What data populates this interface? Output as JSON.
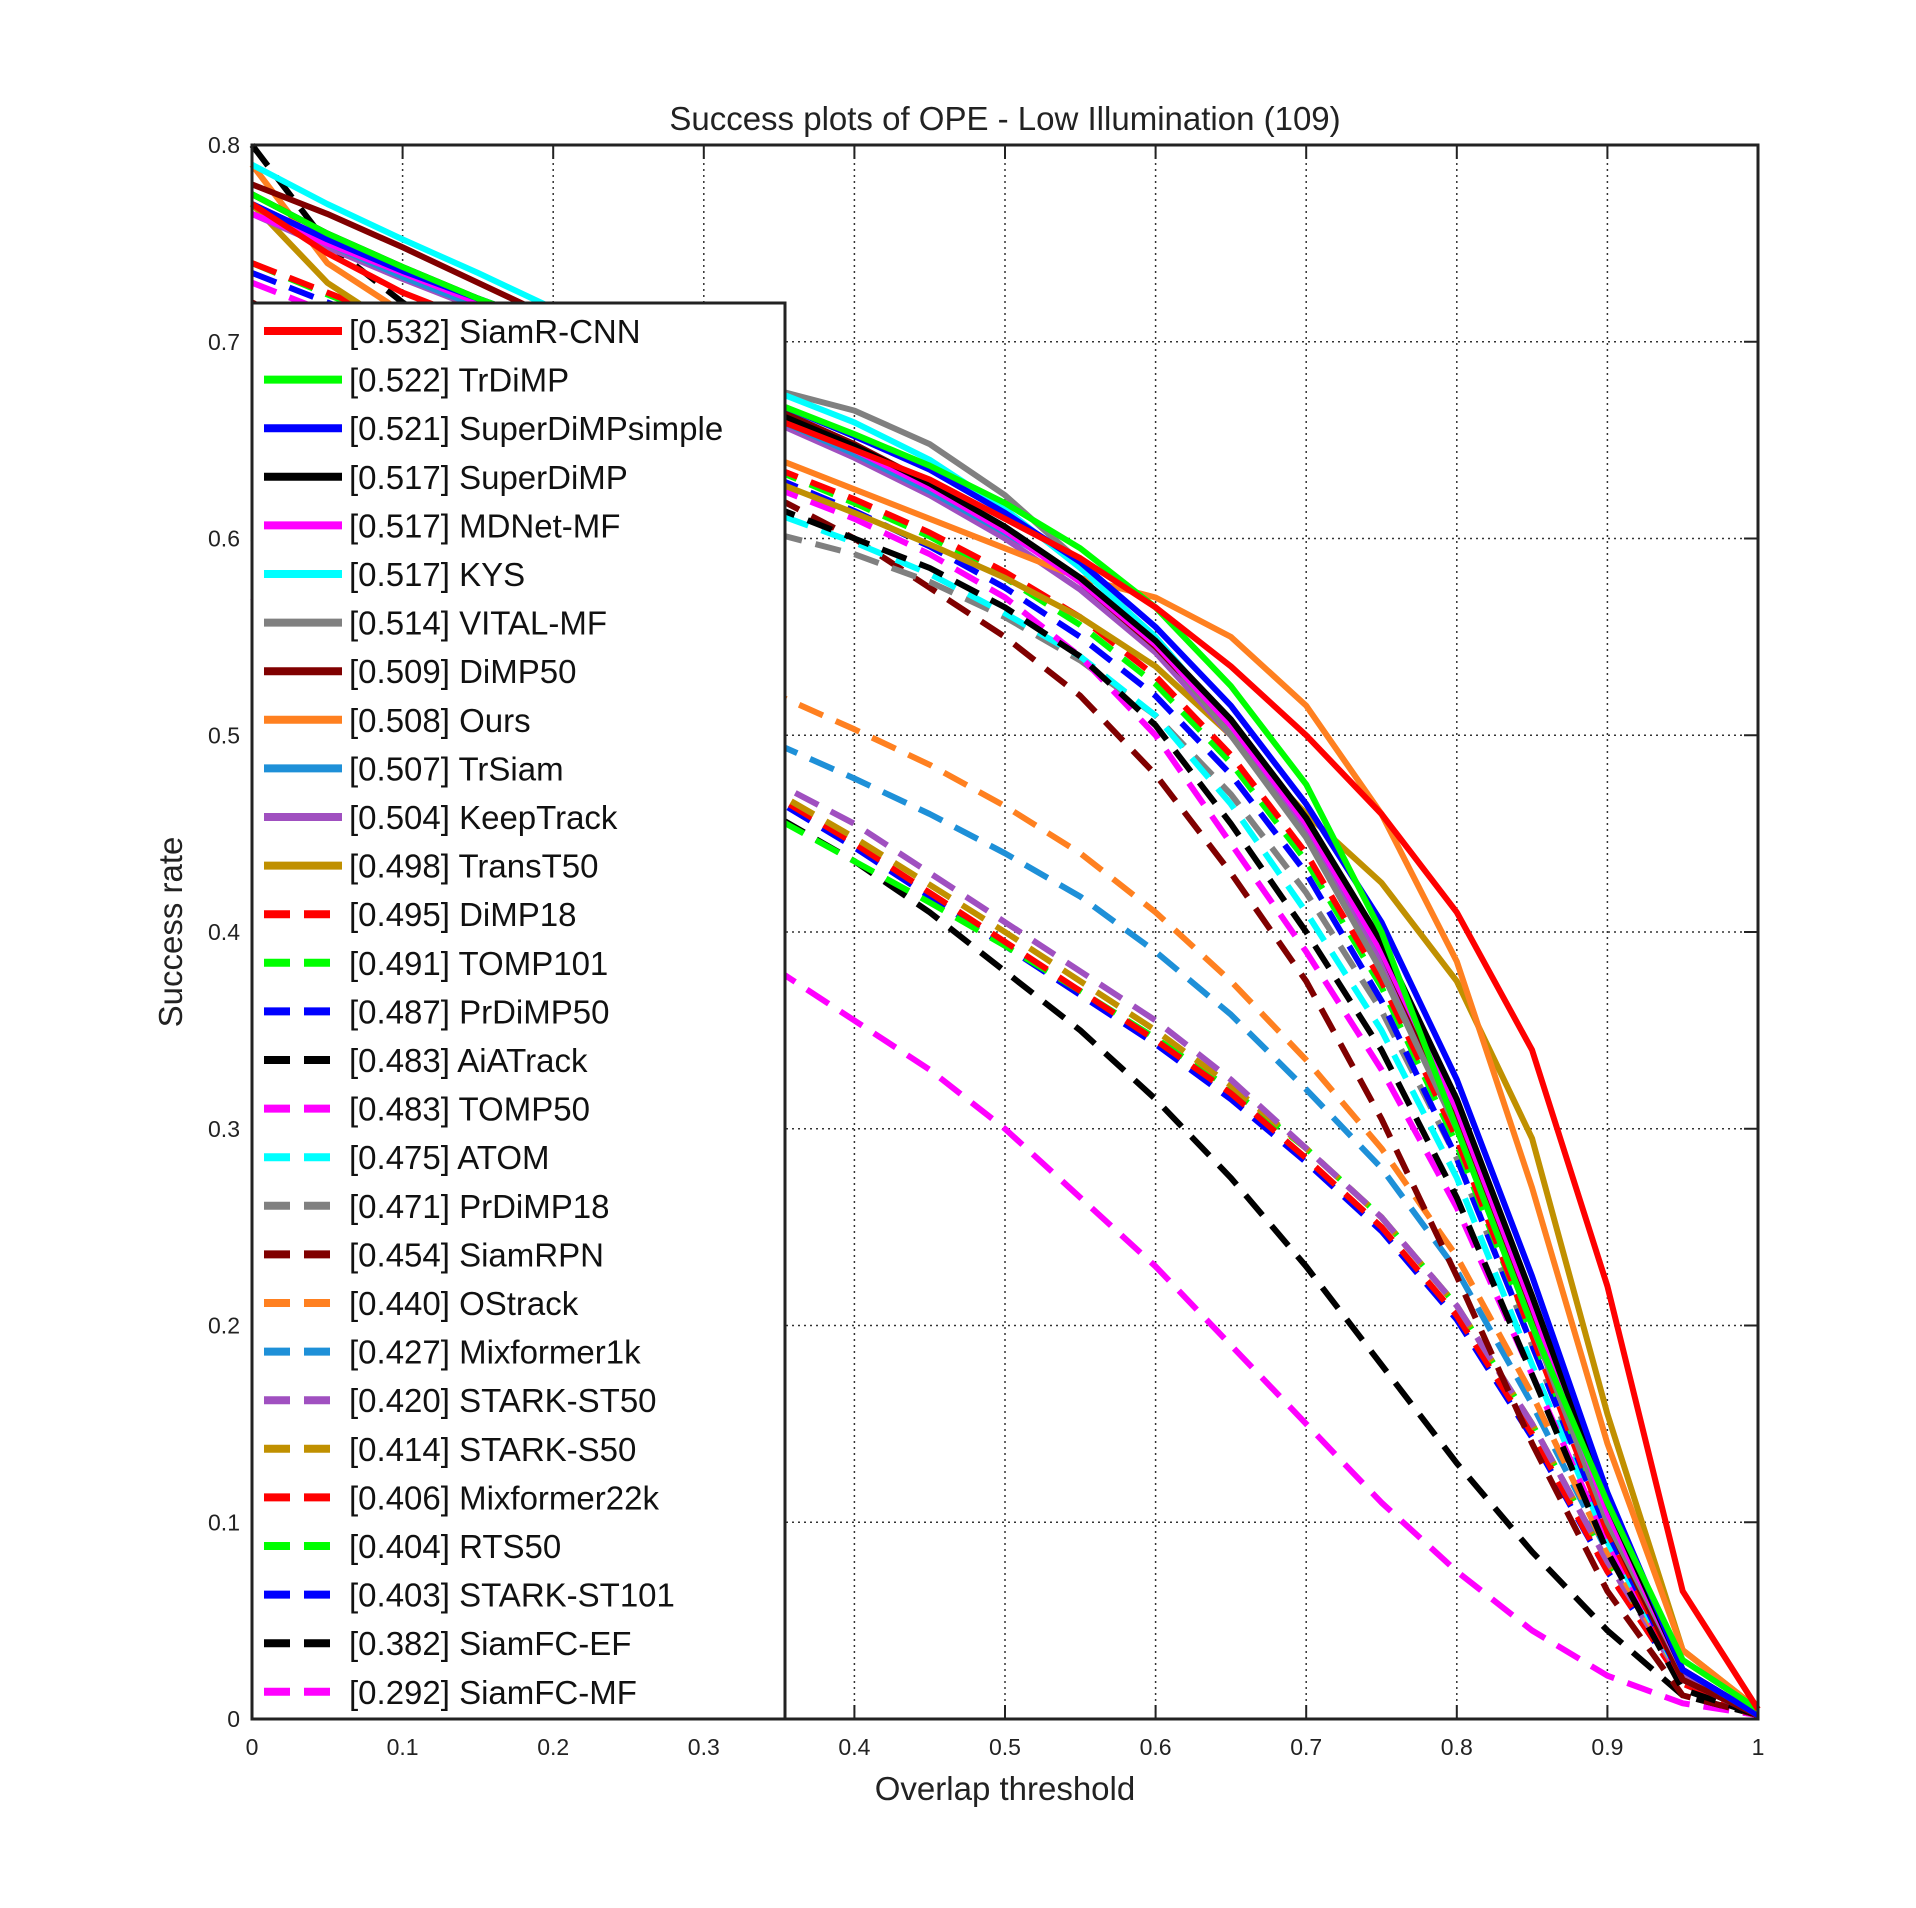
{
  "chart_data": {
    "type": "line",
    "title": "Success plots of OPE - Low Illumination (109)",
    "xlabel": "Overlap threshold",
    "ylabel": "Success rate",
    "xlim": [
      0,
      1
    ],
    "ylim": [
      0,
      0.8
    ],
    "xticks": [
      0,
      0.1,
      0.2,
      0.3,
      0.4,
      0.5,
      0.6,
      0.7,
      0.8,
      0.9,
      1
    ],
    "xtick_labels": [
      "0",
      "0.1",
      "0.2",
      "0.3",
      "0.4",
      "0.5",
      "0.6",
      "0.7",
      "0.8",
      "0.9",
      "1"
    ],
    "yticks": [
      0,
      0.1,
      0.2,
      0.3,
      0.4,
      0.5,
      0.6,
      0.7,
      0.8
    ],
    "ytick_labels": [
      "0",
      "0.1",
      "0.2",
      "0.3",
      "0.4",
      "0.5",
      "0.6",
      "0.7",
      "0.8"
    ],
    "grid": true,
    "grid_style": "dotted",
    "legend_position": "upper-left (inside axes)",
    "x": [
      0,
      0.05,
      0.1,
      0.15,
      0.2,
      0.25,
      0.3,
      0.35,
      0.4,
      0.45,
      0.5,
      0.55,
      0.6,
      0.65,
      0.7,
      0.75,
      0.8,
      0.85,
      0.9,
      0.95,
      1
    ],
    "series": [
      {
        "name": "[0.532] SiamR-CNN",
        "color": "#ff0000",
        "dashed": false,
        "values": [
          0.77,
          0.745,
          0.725,
          0.71,
          0.7,
          0.69,
          0.675,
          0.66,
          0.645,
          0.63,
          0.61,
          0.59,
          0.565,
          0.535,
          0.5,
          0.46,
          0.41,
          0.34,
          0.22,
          0.065,
          0.005
        ]
      },
      {
        "name": "[0.522] TrDiMP",
        "color": "#00ff00",
        "dashed": false,
        "values": [
          0.775,
          0.755,
          0.738,
          0.722,
          0.708,
          0.695,
          0.682,
          0.668,
          0.653,
          0.637,
          0.618,
          0.595,
          0.565,
          0.525,
          0.475,
          0.4,
          0.3,
          0.2,
          0.11,
          0.03,
          0.005
        ]
      },
      {
        "name": "[0.521] SuperDiMPsimple",
        "color": "#0000ff",
        "dashed": false,
        "values": [
          0.77,
          0.752,
          0.736,
          0.722,
          0.708,
          0.695,
          0.682,
          0.668,
          0.652,
          0.635,
          0.613,
          0.588,
          0.555,
          0.515,
          0.465,
          0.405,
          0.325,
          0.225,
          0.115,
          0.025,
          0.002
        ]
      },
      {
        "name": "[0.517] SuperDiMP",
        "color": "#000000",
        "dashed": false,
        "values": [
          0.775,
          0.755,
          0.738,
          0.722,
          0.707,
          0.693,
          0.678,
          0.663,
          0.647,
          0.628,
          0.606,
          0.58,
          0.548,
          0.508,
          0.458,
          0.395,
          0.315,
          0.215,
          0.11,
          0.025,
          0.002
        ]
      },
      {
        "name": "[0.517] MDNet-MF",
        "color": "#ff00ff",
        "dashed": false,
        "values": [
          0.765,
          0.75,
          0.735,
          0.72,
          0.706,
          0.692,
          0.677,
          0.662,
          0.645,
          0.626,
          0.604,
          0.578,
          0.546,
          0.505,
          0.455,
          0.39,
          0.31,
          0.21,
          0.105,
          0.025,
          0.002
        ]
      },
      {
        "name": "[0.517] KYS",
        "color": "#00ffff",
        "dashed": false,
        "values": [
          0.79,
          0.77,
          0.752,
          0.735,
          0.717,
          0.7,
          0.686,
          0.674,
          0.659,
          0.64,
          0.615,
          0.585,
          0.55,
          0.505,
          0.455,
          0.39,
          0.31,
          0.21,
          0.105,
          0.025,
          0.002
        ]
      },
      {
        "name": "[0.514] VITAL-MF",
        "color": "#808080",
        "dashed": false,
        "values": [
          0.77,
          0.752,
          0.737,
          0.722,
          0.708,
          0.695,
          0.685,
          0.675,
          0.665,
          0.648,
          0.622,
          0.588,
          0.548,
          0.5,
          0.448,
          0.38,
          0.3,
          0.2,
          0.1,
          0.025,
          0.002
        ]
      },
      {
        "name": "[0.509] DiMP50",
        "color": "#800000",
        "dashed": false,
        "values": [
          0.78,
          0.765,
          0.748,
          0.73,
          0.712,
          0.696,
          0.681,
          0.665,
          0.648,
          0.628,
          0.605,
          0.578,
          0.545,
          0.505,
          0.455,
          0.39,
          0.305,
          0.205,
          0.1,
          0.02,
          0.002
        ]
      },
      {
        "name": "[0.508] Ours",
        "color": "#ff8020",
        "dashed": false,
        "values": [
          0.79,
          0.74,
          0.715,
          0.7,
          0.685,
          0.67,
          0.655,
          0.64,
          0.625,
          0.61,
          0.595,
          0.58,
          0.57,
          0.55,
          0.515,
          0.46,
          0.385,
          0.27,
          0.14,
          0.035,
          0.005
        ]
      },
      {
        "name": "[0.507] TrSiam",
        "color": "#1e90d8",
        "dashed": false,
        "values": [
          0.77,
          0.75,
          0.733,
          0.718,
          0.703,
          0.689,
          0.675,
          0.66,
          0.643,
          0.624,
          0.603,
          0.58,
          0.548,
          0.505,
          0.455,
          0.39,
          0.31,
          0.21,
          0.105,
          0.025,
          0.002
        ]
      },
      {
        "name": "[0.504] KeepTrack",
        "color": "#a050c0",
        "dashed": false,
        "values": [
          0.765,
          0.748,
          0.732,
          0.717,
          0.702,
          0.688,
          0.673,
          0.658,
          0.641,
          0.622,
          0.6,
          0.574,
          0.542,
          0.5,
          0.45,
          0.385,
          0.305,
          0.205,
          0.1,
          0.022,
          0.002
        ]
      },
      {
        "name": "[0.498] TransT50",
        "color": "#c09000",
        "dashed": false,
        "values": [
          0.77,
          0.73,
          0.705,
          0.688,
          0.672,
          0.657,
          0.642,
          0.628,
          0.613,
          0.597,
          0.58,
          0.56,
          0.535,
          0.5,
          0.46,
          0.425,
          0.375,
          0.295,
          0.155,
          0.035,
          0.005
        ]
      },
      {
        "name": "[0.495] DiMP18",
        "color": "#ff0000",
        "dashed": true,
        "values": [
          0.74,
          0.725,
          0.71,
          0.695,
          0.68,
          0.665,
          0.65,
          0.635,
          0.62,
          0.603,
          0.583,
          0.56,
          0.53,
          0.49,
          0.44,
          0.375,
          0.295,
          0.195,
          0.095,
          0.02,
          0.002
        ]
      },
      {
        "name": "[0.491] TOMP101",
        "color": "#00ff00",
        "dashed": true,
        "values": [
          0.74,
          0.724,
          0.709,
          0.694,
          0.679,
          0.664,
          0.649,
          0.634,
          0.618,
          0.601,
          0.58,
          0.556,
          0.526,
          0.486,
          0.436,
          0.372,
          0.292,
          0.195,
          0.1,
          0.025,
          0.002
        ]
      },
      {
        "name": "[0.487] PrDiMP50",
        "color": "#0000ff",
        "dashed": true,
        "values": [
          0.735,
          0.72,
          0.705,
          0.69,
          0.675,
          0.66,
          0.645,
          0.63,
          0.614,
          0.596,
          0.575,
          0.55,
          0.52,
          0.48,
          0.43,
          0.365,
          0.285,
          0.19,
          0.095,
          0.02,
          0.002
        ]
      },
      {
        "name": "[0.483] AiATrack",
        "color": "#000000",
        "dashed": true,
        "values": [
          0.8,
          0.75,
          0.72,
          0.695,
          0.675,
          0.655,
          0.635,
          0.615,
          0.6,
          0.585,
          0.565,
          0.54,
          0.505,
          0.455,
          0.4,
          0.34,
          0.265,
          0.175,
          0.085,
          0.015,
          0.002
        ]
      },
      {
        "name": "[0.483] TOMP50",
        "color": "#ff00ff",
        "dashed": true,
        "values": [
          0.73,
          0.715,
          0.7,
          0.685,
          0.67,
          0.655,
          0.64,
          0.625,
          0.61,
          0.592,
          0.57,
          0.54,
          0.5,
          0.445,
          0.39,
          0.33,
          0.26,
          0.175,
          0.09,
          0.02,
          0.002
        ]
      },
      {
        "name": "[0.475] ATOM",
        "color": "#00ffff",
        "dashed": true,
        "values": [
          0.7,
          0.685,
          0.672,
          0.66,
          0.648,
          0.636,
          0.624,
          0.612,
          0.598,
          0.582,
          0.562,
          0.54,
          0.51,
          0.465,
          0.41,
          0.35,
          0.275,
          0.18,
          0.09,
          0.02,
          0.002
        ]
      },
      {
        "name": "[0.471] PrDiMP18",
        "color": "#808080",
        "dashed": true,
        "values": [
          0.7,
          0.68,
          0.665,
          0.65,
          0.637,
          0.625,
          0.613,
          0.602,
          0.592,
          0.578,
          0.56,
          0.538,
          0.51,
          0.47,
          0.42,
          0.36,
          0.285,
          0.19,
          0.095,
          0.02,
          0.002
        ]
      },
      {
        "name": "[0.454] SiamRPN",
        "color": "#800000",
        "dashed": true,
        "values": [
          0.72,
          0.7,
          0.685,
          0.672,
          0.66,
          0.648,
          0.634,
          0.62,
          0.6,
          0.575,
          0.55,
          0.52,
          0.48,
          0.43,
          0.375,
          0.305,
          0.225,
          0.14,
          0.065,
          0.012,
          0.002
        ]
      },
      {
        "name": "[0.440] OStrack",
        "color": "#ff8020",
        "dashed": true,
        "values": [
          0.64,
          0.62,
          0.6,
          0.585,
          0.57,
          0.553,
          0.537,
          0.52,
          0.503,
          0.485,
          0.464,
          0.44,
          0.41,
          0.375,
          0.335,
          0.29,
          0.235,
          0.165,
          0.085,
          0.02,
          0.002
        ]
      },
      {
        "name": "[0.427] Mixformer1k",
        "color": "#1e90d8",
        "dashed": true,
        "values": [
          0.6,
          0.585,
          0.57,
          0.555,
          0.54,
          0.525,
          0.51,
          0.495,
          0.478,
          0.46,
          0.44,
          0.418,
          0.39,
          0.358,
          0.32,
          0.28,
          0.228,
          0.16,
          0.085,
          0.02,
          0.002
        ]
      },
      {
        "name": "[0.420] STARK-ST50",
        "color": "#a050c0",
        "dashed": true,
        "values": [
          0.6,
          0.582,
          0.565,
          0.547,
          0.53,
          0.512,
          0.495,
          0.475,
          0.455,
          0.43,
          0.405,
          0.38,
          0.355,
          0.325,
          0.29,
          0.255,
          0.21,
          0.15,
          0.08,
          0.02,
          0.002
        ]
      },
      {
        "name": "[0.414] STARK-S50",
        "color": "#c09000",
        "dashed": true,
        "values": [
          0.6,
          0.58,
          0.562,
          0.544,
          0.526,
          0.508,
          0.49,
          0.47,
          0.448,
          0.424,
          0.4,
          0.375,
          0.35,
          0.322,
          0.29,
          0.255,
          0.21,
          0.15,
          0.08,
          0.02,
          0.002
        ]
      },
      {
        "name": "[0.406] Mixformer22k",
        "color": "#ff0000",
        "dashed": true,
        "values": [
          0.6,
          0.578,
          0.56,
          0.542,
          0.524,
          0.506,
          0.488,
          0.468,
          0.445,
          0.42,
          0.395,
          0.37,
          0.345,
          0.318,
          0.285,
          0.25,
          0.205,
          0.145,
          0.075,
          0.018,
          0.002
        ]
      },
      {
        "name": "[0.404] RTS50",
        "color": "#00ff00",
        "dashed": true,
        "values": [
          0.6,
          0.575,
          0.555,
          0.535,
          0.515,
          0.497,
          0.478,
          0.457,
          0.436,
          0.415,
          0.393,
          0.37,
          0.346,
          0.32,
          0.29,
          0.255,
          0.21,
          0.15,
          0.08,
          0.02,
          0.002
        ]
      },
      {
        "name": "[0.403] STARK-ST101",
        "color": "#0000ff",
        "dashed": true,
        "values": [
          0.6,
          0.578,
          0.56,
          0.541,
          0.523,
          0.505,
          0.487,
          0.466,
          0.443,
          0.418,
          0.393,
          0.368,
          0.343,
          0.315,
          0.283,
          0.248,
          0.203,
          0.143,
          0.075,
          0.018,
          0.002
        ]
      },
      {
        "name": "[0.382] SiamFC-EF",
        "color": "#000000",
        "dashed": true,
        "values": [
          0.6,
          0.575,
          0.555,
          0.535,
          0.515,
          0.496,
          0.478,
          0.458,
          0.436,
          0.41,
          0.38,
          0.35,
          0.315,
          0.275,
          0.23,
          0.18,
          0.13,
          0.085,
          0.045,
          0.012,
          0.002
        ]
      },
      {
        "name": "[0.292] SiamFC-MF",
        "color": "#ff00ff",
        "dashed": true,
        "values": [
          0.57,
          0.54,
          0.51,
          0.48,
          0.455,
          0.43,
          0.405,
          0.38,
          0.355,
          0.33,
          0.3,
          0.265,
          0.23,
          0.19,
          0.15,
          0.11,
          0.075,
          0.045,
          0.022,
          0.008,
          0.002
        ]
      }
    ]
  }
}
